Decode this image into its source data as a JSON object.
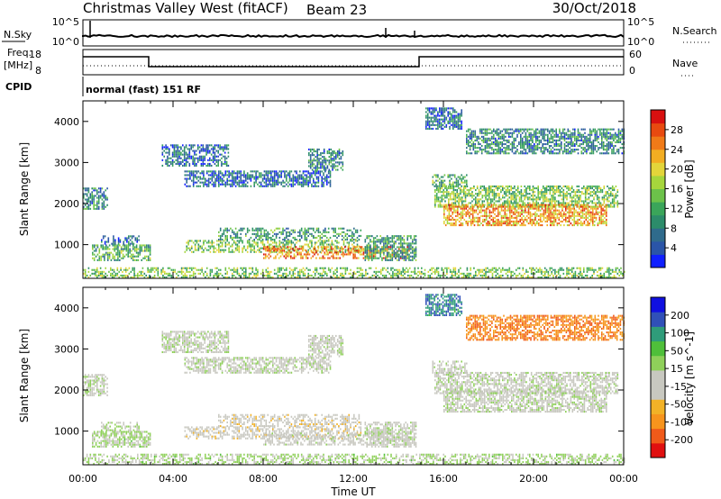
{
  "header": {
    "station": "Christmas Valley West (fitACF)",
    "beam": "Beam 23",
    "date": "30/Oct/2018"
  },
  "summary_panels": {
    "nsky_label": "N.Sky",
    "nsky_ticks": [
      "10^5",
      "10^0"
    ],
    "nsearch_label": "N.Search",
    "nsearch_ticks": [
      "10^5",
      "10^0"
    ],
    "freq_label_top": "Freq.",
    "freq_label_bottom": "[MHz]",
    "freq_ticks": [
      "18",
      "8"
    ],
    "nave_label": "Nave",
    "nave_ticks": [
      "60",
      "0"
    ],
    "cpid_label": "CPID",
    "cpid_text": "normal (fast) 151 RF"
  },
  "chart_data": [
    {
      "type": "heatmap",
      "name": "power",
      "ylabel": "Slant Range [km]",
      "yticks": [
        "4000",
        "3000",
        "2000",
        "1000"
      ],
      "ylim": [
        180,
        4500
      ],
      "xlim": [
        0,
        24
      ],
      "colorbar_label": "Power [dB]",
      "colorbar_ticks": [
        "28",
        "24",
        "20",
        "16",
        "12",
        "8",
        "4"
      ],
      "colorbar_range": [
        0,
        30
      ],
      "colors": [
        "#1020ff",
        "#2a55a8",
        "#2f6b8c",
        "#2c8c6a",
        "#3aa55a",
        "#6cc24a",
        "#a6d63c",
        "#e3d53a",
        "#f2ad22",
        "#f07a18",
        "#e84a10",
        "#d81010"
      ],
      "regions": [
        {
          "t": [
            0.0,
            1.1
          ],
          "r": [
            1850,
            2350
          ],
          "level": 8
        },
        {
          "t": [
            0.4,
            3.0
          ],
          "r": [
            600,
            1000
          ],
          "level": 12
        },
        {
          "t": [
            0.8,
            2.5
          ],
          "r": [
            1000,
            1200
          ],
          "level": 6
        },
        {
          "t": [
            3.5,
            6.5
          ],
          "r": [
            2900,
            3400
          ],
          "level": 6
        },
        {
          "t": [
            4.5,
            11.0
          ],
          "r": [
            2400,
            2800
          ],
          "level": 6
        },
        {
          "t": [
            10.0,
            11.5
          ],
          "r": [
            2800,
            3300
          ],
          "level": 8
        },
        {
          "t": [
            4.5,
            12.3
          ],
          "r": [
            800,
            1100
          ],
          "level": 14
        },
        {
          "t": [
            6.0,
            12.3
          ],
          "r": [
            1100,
            1400
          ],
          "level": 10
        },
        {
          "t": [
            8.0,
            14.5
          ],
          "r": [
            650,
            950
          ],
          "level": 24
        },
        {
          "t": [
            12.5,
            14.8
          ],
          "r": [
            600,
            1200
          ],
          "level": 10
        },
        {
          "t": [
            15.6,
            23.7
          ],
          "r": [
            1900,
            2400
          ],
          "level": 14
        },
        {
          "t": [
            16.0,
            23.2
          ],
          "r": [
            1450,
            1950
          ],
          "level": 22
        },
        {
          "t": [
            15.5,
            17.0
          ],
          "r": [
            2400,
            2700
          ],
          "level": 12
        },
        {
          "t": [
            17.0,
            24.0
          ],
          "r": [
            3200,
            3800
          ],
          "level": 8
        },
        {
          "t": [
            15.2,
            16.8
          ],
          "r": [
            3800,
            4300
          ],
          "level": 6
        },
        {
          "t": [
            0.0,
            24.0
          ],
          "r": [
            180,
            450
          ],
          "level": 14
        }
      ]
    },
    {
      "type": "heatmap",
      "name": "velocity",
      "ylabel": "Slant Range [km]",
      "yticks": [
        "4000",
        "3000",
        "2000",
        "1000"
      ],
      "ylim": [
        180,
        4500
      ],
      "xlim": [
        0,
        24
      ],
      "xlabel": "Time UT",
      "xticks": [
        "00:00",
        "04:00",
        "08:00",
        "12:00",
        "16:00",
        "20:00",
        "00:00"
      ],
      "xtick_values": [
        0,
        4,
        8,
        12,
        16,
        20,
        24
      ],
      "colorbar_label": "Velocity [m s^-1]",
      "colorbar_ticks": [
        "200",
        "100",
        "50",
        "15",
        "-15",
        "-50",
        "-100",
        "-200"
      ],
      "colorbar_range": [
        -250,
        250
      ],
      "colors": [
        "#e01010",
        "#f05a1a",
        "#f7941d",
        "#f2b227",
        "#c8c8c0",
        "#c8c8c0",
        "#8fd05a",
        "#4fbf3a",
        "#2f9c7a",
        "#3050b8",
        "#1010e0"
      ],
      "regions": [
        {
          "t": [
            0.0,
            1.1
          ],
          "r": [
            1850,
            2350
          ],
          "v": 0
        },
        {
          "t": [
            0.4,
            3.0
          ],
          "r": [
            600,
            1000
          ],
          "v": 30
        },
        {
          "t": [
            0.8,
            2.5
          ],
          "r": [
            1000,
            1200
          ],
          "v": 20
        },
        {
          "t": [
            3.5,
            6.5
          ],
          "r": [
            2900,
            3400
          ],
          "v": 0
        },
        {
          "t": [
            4.5,
            11.0
          ],
          "r": [
            2400,
            2800
          ],
          "v": 0
        },
        {
          "t": [
            10.0,
            11.5
          ],
          "r": [
            2800,
            3300
          ],
          "v": 0
        },
        {
          "t": [
            4.5,
            12.3
          ],
          "r": [
            800,
            1100
          ],
          "v": -40
        },
        {
          "t": [
            6.0,
            12.3
          ],
          "r": [
            1100,
            1400
          ],
          "v": -40
        },
        {
          "t": [
            8.0,
            14.5
          ],
          "r": [
            650,
            950
          ],
          "v": -10
        },
        {
          "t": [
            12.5,
            14.8
          ],
          "r": [
            600,
            1200
          ],
          "v": 0
        },
        {
          "t": [
            15.6,
            23.7
          ],
          "r": [
            1900,
            2400
          ],
          "v": 0
        },
        {
          "t": [
            16.0,
            23.2
          ],
          "r": [
            1450,
            1950
          ],
          "v": 0
        },
        {
          "t": [
            15.5,
            17.0
          ],
          "r": [
            2400,
            2700
          ],
          "v": 0
        },
        {
          "t": [
            17.0,
            24.0
          ],
          "r": [
            3200,
            3800
          ],
          "v": -150
        },
        {
          "t": [
            15.2,
            16.8
          ],
          "r": [
            3800,
            4300
          ],
          "v": 150
        },
        {
          "t": [
            0.0,
            24.0
          ],
          "r": [
            180,
            450
          ],
          "v": 30
        }
      ]
    }
  ]
}
